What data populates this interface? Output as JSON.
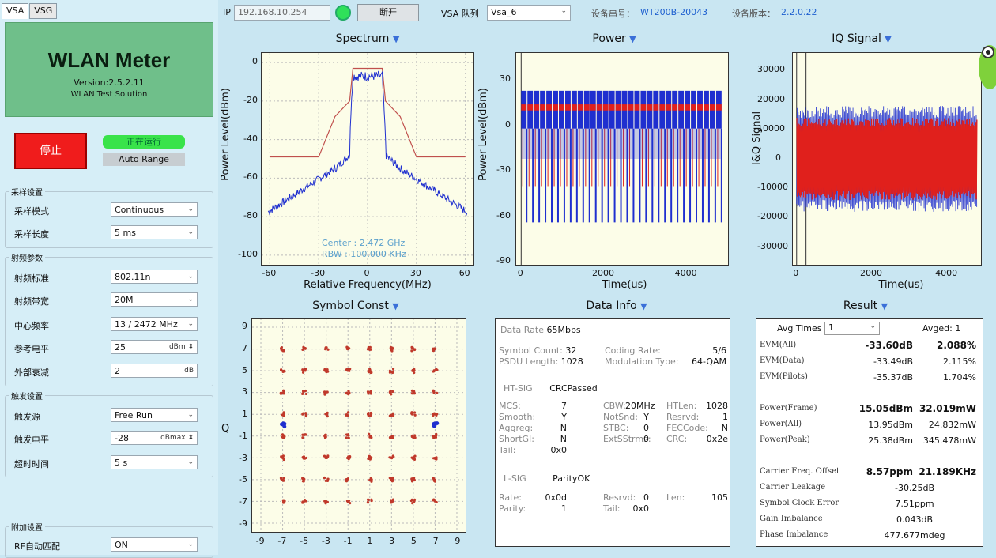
{
  "tabs": [
    "VSA",
    "VSG"
  ],
  "banner": {
    "title": "WLAN Meter",
    "version": "Version:2.5.2.11",
    "subtitle": "WLAN Test Solution"
  },
  "controls": {
    "stop": "停止",
    "running": "正在运行",
    "auto_range": "Auto Range"
  },
  "sampling": {
    "group": "采样设置",
    "rows": [
      {
        "label": "采样模式",
        "value": "Continuous"
      },
      {
        "label": "采样长度",
        "value": "5 ms"
      }
    ]
  },
  "rf": {
    "group": "射频参数",
    "rows": [
      {
        "label": "射频标准",
        "value": "802.11n"
      },
      {
        "label": "射频带宽",
        "value": "20M"
      },
      {
        "label": "中心频率",
        "value": "13 / 2472 MHz"
      },
      {
        "label": "参考电平",
        "value": "25",
        "unit": "dBm"
      },
      {
        "label": "外部衰减",
        "value": "2",
        "unit": "dB"
      }
    ]
  },
  "trigger": {
    "group": "触发设置",
    "rows": [
      {
        "label": "触发源",
        "value": "Free Run"
      },
      {
        "label": "触发电平",
        "value": "-28",
        "unit": "dBmax"
      },
      {
        "label": "超时时间",
        "value": "5 s"
      }
    ]
  },
  "extra": {
    "group": "附加设置",
    "rows": [
      {
        "label": "RF自动匹配",
        "value": "ON"
      }
    ]
  },
  "topbar": {
    "ip_label": "IP",
    "ip": "192.168.10.254",
    "disconnect": "断开",
    "vsa_label": "VSA 队列",
    "vsa": "Vsa_6",
    "sn_label": "设备串号：",
    "sn": "WT200B-20043",
    "ver_label": "设备版本：",
    "ver": "2.2.0.22"
  },
  "panels": {
    "spectrum": "Spectrum",
    "power": "Power",
    "iq": "IQ Signal",
    "const": "Symbol Const",
    "datainfo": "Data Info",
    "result": "Result"
  },
  "spectrum": {
    "ylabel": "Power Level(dBm)",
    "xlabel": "Relative Frequency(MHz)",
    "yticks": [
      "0",
      "-20",
      "-40",
      "-60",
      "-80",
      "-100"
    ],
    "xticks": [
      "-60",
      "-30",
      "0",
      "30",
      "60"
    ],
    "center": "Center : 2.472 GHz",
    "rbw": "RBW : 100.000 KHz"
  },
  "power": {
    "ylabel": "Power Level(dBm)",
    "xlabel": "Time(us)",
    "yticks": [
      "30",
      "0",
      "-30",
      "-60",
      "-90"
    ],
    "xticks": [
      "0",
      "2000",
      "4000"
    ]
  },
  "iq": {
    "ylabel": "I&Q Signal",
    "xlabel": "Time(us)",
    "yticks": [
      "30000",
      "20000",
      "10000",
      "0",
      "-10000",
      "-20000",
      "-30000"
    ],
    "xticks": [
      "0",
      "2000",
      "4000"
    ]
  },
  "constellation": {
    "ylabel": "Q",
    "yticks": [
      "9",
      "7",
      "5",
      "3",
      "1",
      "-1",
      "-3",
      "-5",
      "-7",
      "-9"
    ],
    "xticks": [
      "-9",
      "-7",
      "-5",
      "-3",
      "-1",
      "1",
      "3",
      "5",
      "7",
      "9"
    ]
  },
  "datainfo": {
    "rate_label": "Data Rate",
    "rate": "65Mbps",
    "sym_label": "Symbol Count:",
    "sym": "32",
    "cr_label": "Coding Rate:",
    "cr": "5/6",
    "psdu_label": "PSDU Length:",
    "psdu": "1028",
    "mod_label": "Modulation Type:",
    "mod": "64-QAM",
    "htsig_label": "HT-SIG",
    "htsig": "CRCPassed",
    "ht": [
      [
        "MCS:",
        "7",
        "CBW:",
        "20MHz",
        "HTLen:",
        "1028"
      ],
      [
        "Smooth:",
        "Y",
        "NotSnd:",
        "Y",
        "Resrvd:",
        "1"
      ],
      [
        "Aggreg:",
        "N",
        "STBC:",
        "0",
        "FECCode:",
        "N"
      ],
      [
        "ShortGI:",
        "N",
        "ExtSStrms:",
        "0",
        "CRC:",
        "0x2e"
      ],
      [
        "Tail:",
        "0x0",
        "",
        "",
        "",
        ""
      ]
    ],
    "lsig_label": "L-SIG",
    "lsig": "ParityOK",
    "l": [
      [
        "Rate:",
        "0x0d",
        "Resrvd:",
        "0",
        "Len:",
        "105"
      ],
      [
        "Parity:",
        "1",
        "Tail:",
        "0x0",
        "",
        ""
      ]
    ]
  },
  "result": {
    "avg_label": "Avg Times",
    "avg": "1",
    "avged": "Avged: 1",
    "rows": [
      [
        "EVM(All)",
        "-33.60dB",
        "2.088%",
        true
      ],
      [
        "EVM(Data)",
        "-33.49dB",
        "2.115%",
        false
      ],
      [
        "EVM(Pilots)",
        "-35.37dB",
        "1.704%",
        false
      ],
      [
        "Power(Frame)",
        "15.05dBm",
        "32.019mW",
        true
      ],
      [
        "Power(All)",
        "13.95dBm",
        "24.832mW",
        false
      ],
      [
        "Power(Peak)",
        "25.38dBm",
        "345.478mW",
        false
      ],
      [
        "Carrier Freq. Offset",
        "8.57ppm",
        "21.189KHz",
        true
      ],
      [
        "Carrier Leakage",
        "-30.25dB",
        "",
        false
      ],
      [
        "Symbol Clock Error",
        "7.51ppm",
        "",
        false
      ],
      [
        "Gain Imbalance",
        "0.043dB",
        "",
        false
      ],
      [
        "Phase Imbalance",
        "477.677mdeg",
        "",
        false
      ]
    ]
  },
  "colors": {
    "trace_blue": "#1f2fcf",
    "trace_red": "#e0201c",
    "mask": "#c0504d",
    "accent": "#3a6fd8"
  }
}
